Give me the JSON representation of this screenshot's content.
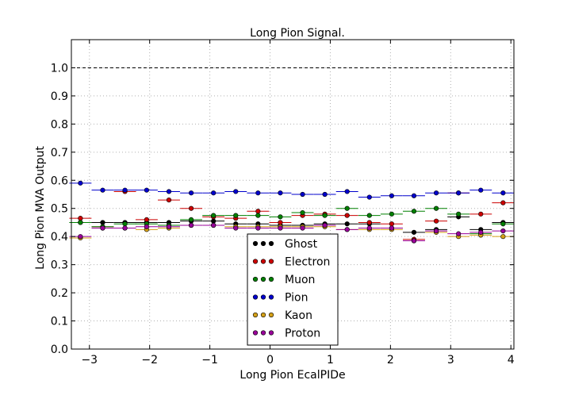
{
  "chart_data": {
    "type": "scatter",
    "title": "Long Pion Signal.",
    "xlabel": "Long Pion EcalPIDe",
    "ylabel": "Long Pion MVA Output",
    "xlim": [
      -3.3,
      4.05
    ],
    "ylim": [
      0.0,
      1.1
    ],
    "x_ticks": [
      -3,
      -2,
      -1,
      0,
      1,
      2,
      3,
      4
    ],
    "x_tick_labels": [
      "−3",
      "−2",
      "−1",
      "0",
      "1",
      "2",
      "3",
      "4"
    ],
    "y_ticks": [
      0.0,
      0.1,
      0.2,
      0.3,
      0.4,
      0.5,
      0.6,
      0.7,
      0.8,
      0.9,
      1.0
    ],
    "y_tick_labels": [
      "0.0",
      "0.1",
      "0.2",
      "0.3",
      "0.4",
      "0.5",
      "0.6",
      "0.7",
      "0.8",
      "0.9",
      "1.0"
    ],
    "grid": true,
    "reference_line": {
      "y": 1.0,
      "style": "dashed",
      "color": "#000000"
    },
    "legend_position": "lower-center",
    "x": [
      -3.15,
      -2.78,
      -2.41,
      -2.05,
      -1.68,
      -1.31,
      -0.94,
      -0.57,
      -0.2,
      0.17,
      0.54,
      0.91,
      1.28,
      1.65,
      2.02,
      2.39,
      2.76,
      3.13,
      3.5,
      3.87
    ],
    "bin_half_width": 0.184,
    "series": [
      {
        "name": "Ghost",
        "color": "#000000",
        "values": [
          0.45,
          0.45,
          0.45,
          0.45,
          0.45,
          0.455,
          0.455,
          0.445,
          0.445,
          0.44,
          0.44,
          0.445,
          0.445,
          0.445,
          0.43,
          0.415,
          0.425,
          0.47,
          0.425,
          0.45
        ]
      },
      {
        "name": "Electron",
        "color": "#cc0000",
        "values": [
          0.465,
          0.435,
          0.56,
          0.46,
          0.53,
          0.5,
          0.47,
          0.465,
          0.49,
          0.45,
          0.475,
          0.48,
          0.475,
          0.45,
          0.445,
          0.39,
          0.455,
          0.555,
          0.48,
          0.52
        ]
      },
      {
        "name": "Muon",
        "color": "#008000",
        "values": [
          0.45,
          0.435,
          0.445,
          0.445,
          0.44,
          0.46,
          0.475,
          0.475,
          0.475,
          0.47,
          0.485,
          0.475,
          0.5,
          0.475,
          0.48,
          0.49,
          0.5,
          0.48,
          0.41,
          0.445
        ]
      },
      {
        "name": "Pion",
        "color": "#0000cc",
        "values": [
          0.59,
          0.565,
          0.565,
          0.565,
          0.56,
          0.555,
          0.555,
          0.56,
          0.555,
          0.555,
          0.55,
          0.55,
          0.56,
          0.54,
          0.545,
          0.545,
          0.555,
          0.555,
          0.565,
          0.555
        ]
      },
      {
        "name": "Kaon",
        "color": "#d4a017",
        "values": [
          0.395,
          0.43,
          0.43,
          0.425,
          0.43,
          0.44,
          0.44,
          0.435,
          0.435,
          0.435,
          0.435,
          0.435,
          0.425,
          0.425,
          0.425,
          0.385,
          0.415,
          0.4,
          0.405,
          0.4
        ]
      },
      {
        "name": "Proton",
        "color": "#990099",
        "values": [
          0.4,
          0.43,
          0.43,
          0.435,
          0.435,
          0.44,
          0.44,
          0.43,
          0.43,
          0.43,
          0.43,
          0.44,
          0.425,
          0.43,
          0.43,
          0.385,
          0.42,
          0.41,
          0.415,
          0.42
        ]
      }
    ]
  }
}
